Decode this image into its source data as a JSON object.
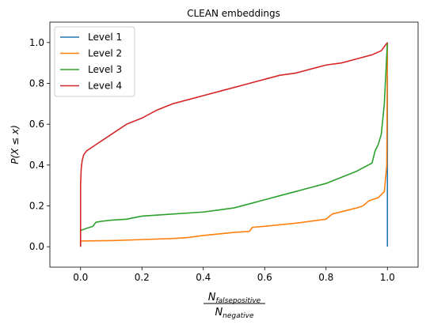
{
  "chart_data": {
    "type": "line",
    "title": "CLEAN embeddings",
    "xlabel_num": "N",
    "xlabel_num_sub": "falsepositive",
    "xlabel_den": "N",
    "xlabel_den_sub": "negative",
    "ylabel": "P(X ≤ x)",
    "xlim": [
      -0.1,
      1.1
    ],
    "ylim": [
      -0.1,
      1.1
    ],
    "xticks": [
      0.0,
      0.2,
      0.4,
      0.6,
      0.8,
      1.0
    ],
    "xtick_labels": [
      "0.0",
      "0.2",
      "0.4",
      "0.6",
      "0.8",
      "1.0"
    ],
    "yticks": [
      0.0,
      0.2,
      0.4,
      0.6,
      0.8,
      1.0
    ],
    "ytick_labels": [
      "0.0",
      "0.2",
      "0.4",
      "0.6",
      "0.8",
      "1.0"
    ],
    "legend_position": "top-left",
    "series": [
      {
        "name": "Level 1",
        "color": "#1f77b4",
        "x": [
          1.0,
          1.0
        ],
        "y": [
          0.0,
          1.0
        ]
      },
      {
        "name": "Level 2",
        "color": "#ff7f0e",
        "x": [
          0.0,
          0.0,
          0.1,
          0.2,
          0.3,
          0.35,
          0.4,
          0.5,
          0.55,
          0.56,
          0.6,
          0.7,
          0.8,
          0.82,
          0.9,
          0.92,
          0.94,
          0.97,
          0.99,
          0.998,
          1.0
        ],
        "y": [
          0.0,
          0.028,
          0.03,
          0.035,
          0.04,
          0.045,
          0.055,
          0.07,
          0.075,
          0.095,
          0.1,
          0.115,
          0.135,
          0.16,
          0.19,
          0.2,
          0.225,
          0.24,
          0.27,
          0.4,
          1.0
        ]
      },
      {
        "name": "Level 3",
        "color": "#2ca02c",
        "x": [
          0.0,
          0.0,
          0.01,
          0.02,
          0.04,
          0.05,
          0.07,
          0.1,
          0.15,
          0.2,
          0.3,
          0.4,
          0.45,
          0.5,
          0.55,
          0.6,
          0.65,
          0.7,
          0.75,
          0.8,
          0.85,
          0.9,
          0.95,
          0.96,
          0.97,
          0.98,
          0.99,
          1.0
        ],
        "y": [
          0.0,
          0.08,
          0.085,
          0.09,
          0.1,
          0.12,
          0.125,
          0.13,
          0.135,
          0.15,
          0.16,
          0.17,
          0.18,
          0.19,
          0.21,
          0.23,
          0.25,
          0.27,
          0.29,
          0.31,
          0.34,
          0.37,
          0.41,
          0.47,
          0.5,
          0.55,
          0.7,
          1.0
        ]
      },
      {
        "name": "Level 4",
        "color": "#d62728",
        "x": [
          0.0,
          0.0,
          0.002,
          0.005,
          0.01,
          0.02,
          0.03,
          0.05,
          0.07,
          0.1,
          0.15,
          0.2,
          0.25,
          0.3,
          0.35,
          0.4,
          0.45,
          0.5,
          0.55,
          0.6,
          0.65,
          0.7,
          0.75,
          0.8,
          0.85,
          0.9,
          0.95,
          0.98,
          0.99,
          1.0
        ],
        "y": [
          0.0,
          0.3,
          0.38,
          0.42,
          0.45,
          0.47,
          0.48,
          0.5,
          0.52,
          0.55,
          0.6,
          0.63,
          0.67,
          0.7,
          0.72,
          0.74,
          0.76,
          0.78,
          0.8,
          0.82,
          0.84,
          0.85,
          0.87,
          0.89,
          0.9,
          0.92,
          0.94,
          0.96,
          0.98,
          1.0
        ]
      }
    ]
  }
}
